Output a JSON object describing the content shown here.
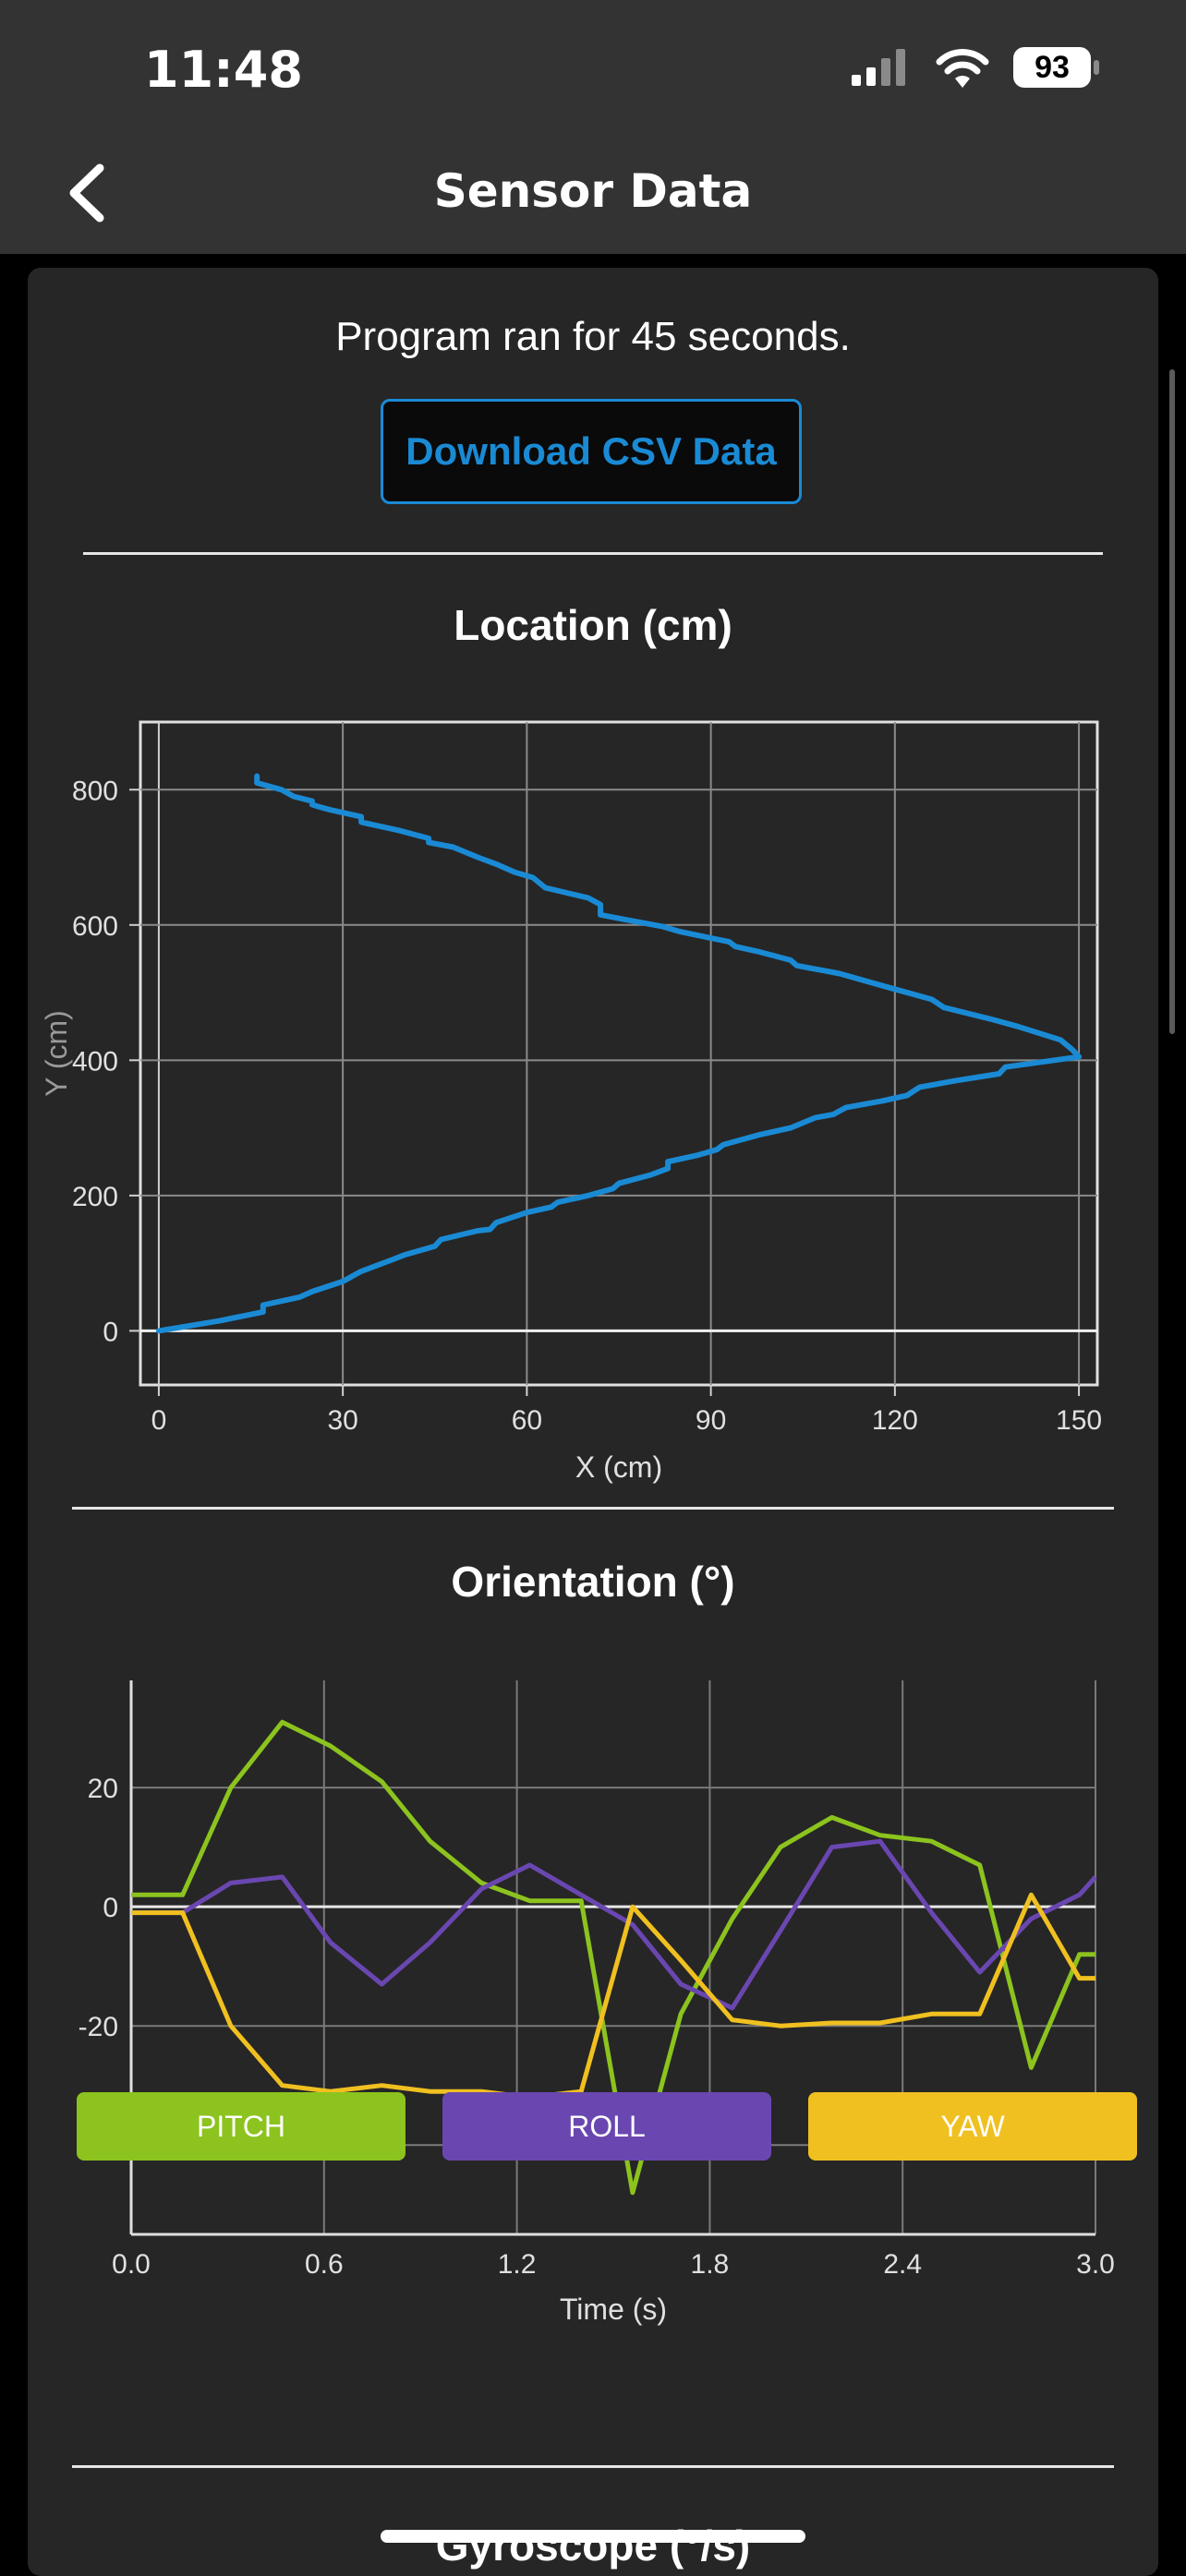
{
  "status_bar": {
    "time": "11:48",
    "battery": "93",
    "icons": [
      "signal-icon",
      "wifi-icon",
      "battery-icon"
    ]
  },
  "nav": {
    "title": "Sensor Data",
    "back_icon": "chevron-left-icon"
  },
  "summary": {
    "run_text": "Program ran for 45 seconds.",
    "download_label": "Download CSV Data"
  },
  "colors": {
    "accent": "#1a8ad4",
    "pitch": "#8cc31e",
    "roll": "#6a47b0",
    "yaw": "#f0c020",
    "background": "#262626",
    "header": "#333333"
  },
  "chart_data": [
    {
      "type": "line",
      "title": "Location (cm)",
      "xlabel": "X (cm)",
      "ylabel": "Y (cm)",
      "xlim": [
        -3,
        153
      ],
      "ylim": [
        -80,
        900
      ],
      "xticks": [
        0,
        30,
        60,
        90,
        120,
        150
      ],
      "yticks": [
        0,
        200,
        400,
        600,
        800
      ],
      "grid": true,
      "series": [
        {
          "color": "#1a8ad4",
          "points": [
            [
              0,
              0
            ],
            [
              10,
              15
            ],
            [
              17,
              28
            ],
            [
              17,
              38
            ],
            [
              23,
              50
            ],
            [
              25,
              58
            ],
            [
              30,
              73
            ],
            [
              33,
              88
            ],
            [
              38,
              105
            ],
            [
              40,
              112
            ],
            [
              45,
              125
            ],
            [
              46,
              135
            ],
            [
              52,
              148
            ],
            [
              54,
              150
            ],
            [
              55,
              160
            ],
            [
              60,
              175
            ],
            [
              64,
              183
            ],
            [
              65,
              190
            ],
            [
              70,
              200
            ],
            [
              74,
              210
            ],
            [
              75,
              218
            ],
            [
              80,
              230
            ],
            [
              83,
              240
            ],
            [
              83,
              250
            ],
            [
              88,
              260
            ],
            [
              91,
              268
            ],
            [
              92,
              275
            ],
            [
              98,
              290
            ],
            [
              103,
              300
            ],
            [
              107,
              315
            ],
            [
              110,
              320
            ],
            [
              112,
              330
            ],
            [
              118,
              340
            ],
            [
              122,
              348
            ],
            [
              124,
              360
            ],
            [
              130,
              370
            ],
            [
              137,
              380
            ],
            [
              138,
              390
            ],
            [
              146,
              400
            ],
            [
              150,
              405
            ],
            [
              149,
              415
            ],
            [
              147,
              430
            ],
            [
              140,
              450
            ],
            [
              136,
              460
            ],
            [
              128,
              478
            ],
            [
              126,
              490
            ],
            [
              118,
              510
            ],
            [
              111,
              528
            ],
            [
              104,
              540
            ],
            [
              103,
              548
            ],
            [
              98,
              560
            ],
            [
              94,
              568
            ],
            [
              93,
              575
            ],
            [
              85,
              590
            ],
            [
              82,
              598
            ],
            [
              76,
              608
            ],
            [
              72,
              615
            ],
            [
              72,
              630
            ],
            [
              70,
              640
            ],
            [
              63,
              655
            ],
            [
              61,
              670
            ],
            [
              58,
              678
            ],
            [
              55,
              690
            ],
            [
              52,
              700
            ],
            [
              48,
              715
            ],
            [
              44,
              722
            ],
            [
              44,
              728
            ],
            [
              39,
              740
            ],
            [
              35,
              748
            ],
            [
              33,
              752
            ],
            [
              33,
              760
            ],
            [
              28,
              770
            ],
            [
              26,
              775
            ],
            [
              25,
              778
            ],
            [
              25,
              783
            ],
            [
              22,
              790
            ],
            [
              20,
              800
            ],
            [
              18,
              805
            ],
            [
              16,
              810
            ],
            [
              16,
              820
            ]
          ]
        }
      ]
    },
    {
      "type": "line",
      "title": "Orientation (°)",
      "xlabel": "Time (s)",
      "ylabel": "",
      "xlim": [
        0,
        3.0
      ],
      "ylim": [
        -55,
        38
      ],
      "xticks": [
        "0.0",
        "0.6",
        "1.2",
        "1.8",
        "2.4",
        "3.0"
      ],
      "yticks": [
        20,
        0,
        -20,
        -40
      ],
      "grid": true,
      "x": [
        0,
        0.16,
        0.31,
        0.47,
        0.62,
        0.78,
        0.93,
        1.09,
        1.24,
        1.4,
        1.56,
        1.71,
        1.87,
        2.02,
        2.18,
        2.33,
        2.49,
        2.64,
        2.8,
        2.95,
        3.0
      ],
      "series": [
        {
          "name": "PITCH",
          "color": "#8cc31e",
          "values": [
            2,
            2,
            20,
            31,
            27,
            21,
            11,
            4,
            1,
            1,
            -48,
            -18,
            -2,
            10,
            15,
            12,
            11,
            7,
            -27,
            -8,
            -8
          ]
        },
        {
          "name": "ROLL",
          "color": "#6a47b0",
          "values": [
            -1,
            -1,
            4,
            5,
            -6,
            -13,
            -6,
            3,
            7,
            2,
            -3,
            -13,
            -17,
            -4,
            10,
            11,
            -1,
            -11,
            -2,
            2,
            5
          ]
        },
        {
          "name": "YAW",
          "color": "#f0c020",
          "values": [
            -1,
            -1,
            -20,
            -30,
            -31,
            -30,
            -31,
            -31,
            -32,
            -31,
            0,
            -9,
            -19,
            -20,
            -19.5,
            -19.5,
            -18,
            -18,
            2,
            -12,
            -12
          ]
        }
      ]
    }
  ],
  "legend": [
    {
      "label": "PITCH"
    },
    {
      "label": "ROLL"
    },
    {
      "label": "YAW"
    }
  ],
  "next_section": {
    "title": "Gyroscope (°/s)"
  }
}
